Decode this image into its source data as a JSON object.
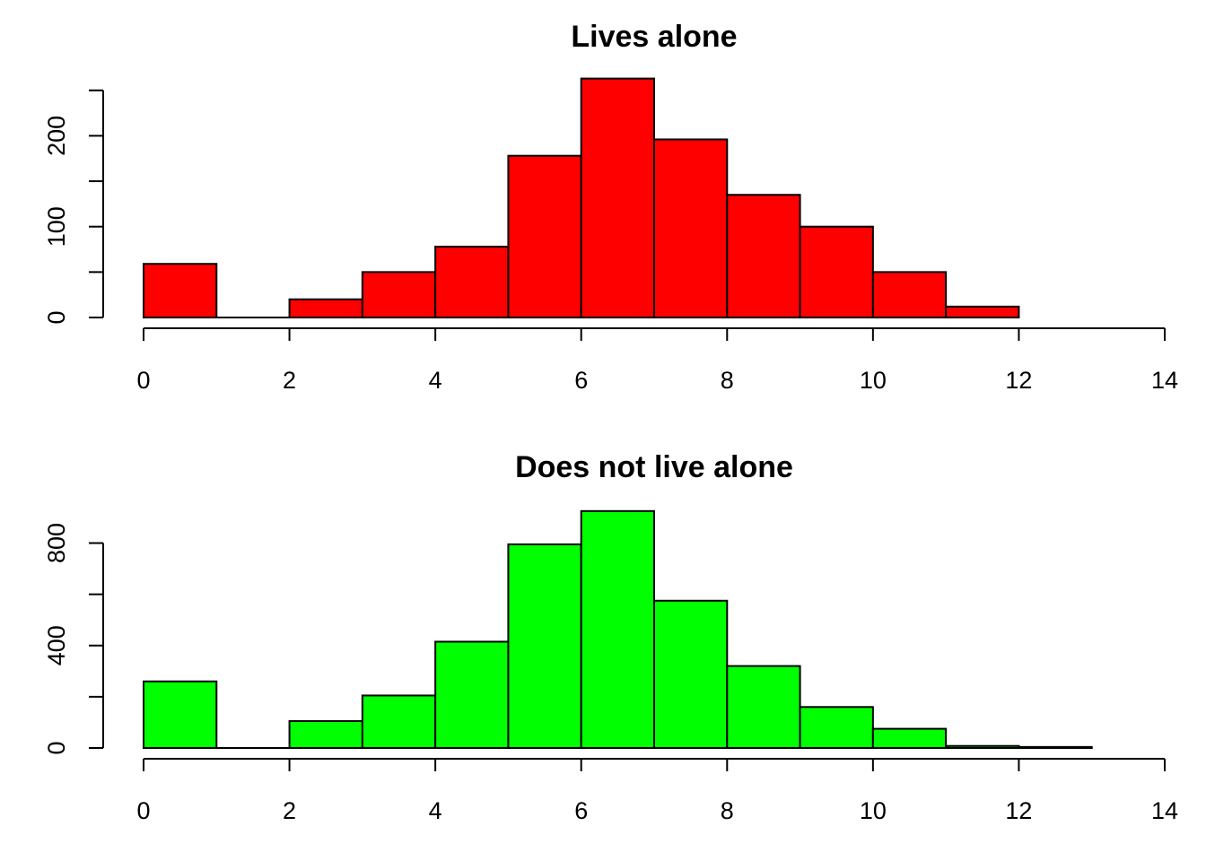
{
  "chart_data": [
    {
      "type": "bar",
      "title": "Lives alone",
      "xlabel": "",
      "ylabel": "",
      "bar_color": "#ff0000",
      "bin_edges": [
        0,
        1,
        2,
        3,
        4,
        5,
        6,
        7,
        8,
        9,
        10,
        11,
        12
      ],
      "values": [
        59,
        0,
        20,
        50,
        78,
        178,
        263,
        196,
        135,
        100,
        50,
        12
      ],
      "xlim": [
        0,
        14
      ],
      "ylim": [
        0,
        250
      ],
      "x_ticks": [
        0,
        2,
        4,
        6,
        8,
        10,
        12,
        14
      ],
      "y_ticks": [
        0,
        100,
        200
      ],
      "y_minor_ticks": [
        50,
        150,
        250
      ],
      "grid": false
    },
    {
      "type": "bar",
      "title": "Does not live alone",
      "xlabel": "",
      "ylabel": "",
      "bar_color": "#00ff00",
      "bin_edges": [
        0,
        1,
        2,
        3,
        4,
        5,
        6,
        7,
        8,
        9,
        10,
        11,
        12,
        13
      ],
      "values": [
        260,
        0,
        105,
        205,
        415,
        795,
        925,
        575,
        320,
        160,
        75,
        8,
        4
      ],
      "xlim": [
        0,
        14
      ],
      "ylim": [
        0,
        800
      ],
      "x_ticks": [
        0,
        2,
        4,
        6,
        8,
        10,
        12,
        14
      ],
      "y_ticks": [
        0,
        400,
        800
      ],
      "y_minor_ticks": [
        200,
        600
      ],
      "grid": false
    }
  ]
}
